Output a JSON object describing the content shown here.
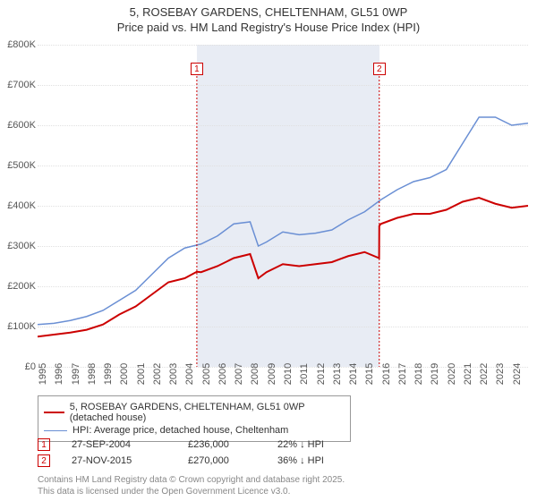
{
  "title_line1": "5, ROSEBAY GARDENS, CHELTENHAM, GL51 0WP",
  "title_line2": "Price paid vs. HM Land Registry's House Price Index (HPI)",
  "chart": {
    "type": "line",
    "background_color": "#ffffff",
    "shaded_band_color": "#e8ecf4",
    "grid_color": "#e0e0e0",
    "x_years": [
      1995,
      1996,
      1997,
      1998,
      1999,
      2000,
      2001,
      2002,
      2003,
      2004,
      2005,
      2006,
      2007,
      2008,
      2009,
      2010,
      2011,
      2012,
      2013,
      2014,
      2015,
      2016,
      2017,
      2018,
      2019,
      2020,
      2021,
      2022,
      2023,
      2024
    ],
    "x_min": 1995,
    "x_max": 2025,
    "ylim": [
      0,
      800000
    ],
    "ytick_step": 100000,
    "y_tick_labels": [
      "£0",
      "£100K",
      "£200K",
      "£300K",
      "£400K",
      "£500K",
      "£600K",
      "£700K",
      "£800K"
    ],
    "shaded_band": {
      "x_start": 2004.74,
      "x_end": 2015.9
    },
    "series": [
      {
        "name": "price_paid",
        "label": "5, ROSEBAY GARDENS, CHELTENHAM, GL51 0WP (detached house)",
        "color": "#cc0000",
        "line_width": 2,
        "points": [
          [
            1995,
            75000
          ],
          [
            1996,
            80000
          ],
          [
            1997,
            85000
          ],
          [
            1998,
            92000
          ],
          [
            1999,
            105000
          ],
          [
            2000,
            130000
          ],
          [
            2001,
            150000
          ],
          [
            2002,
            180000
          ],
          [
            2003,
            210000
          ],
          [
            2004,
            220000
          ],
          [
            2004.74,
            236000
          ],
          [
            2005,
            235000
          ],
          [
            2006,
            250000
          ],
          [
            2007,
            270000
          ],
          [
            2008,
            280000
          ],
          [
            2008.5,
            220000
          ],
          [
            2009,
            235000
          ],
          [
            2010,
            255000
          ],
          [
            2011,
            250000
          ],
          [
            2012,
            255000
          ],
          [
            2013,
            260000
          ],
          [
            2014,
            275000
          ],
          [
            2015,
            285000
          ],
          [
            2015.89,
            270000
          ],
          [
            2015.9,
            350000
          ],
          [
            2016,
            355000
          ],
          [
            2017,
            370000
          ],
          [
            2018,
            380000
          ],
          [
            2019,
            380000
          ],
          [
            2020,
            390000
          ],
          [
            2021,
            410000
          ],
          [
            2022,
            420000
          ],
          [
            2023,
            405000
          ],
          [
            2024,
            395000
          ],
          [
            2025,
            400000
          ]
        ]
      },
      {
        "name": "hpi",
        "label": "HPI: Average price, detached house, Cheltenham",
        "color": "#6a8fd4",
        "line_width": 1.5,
        "points": [
          [
            1995,
            105000
          ],
          [
            1996,
            108000
          ],
          [
            1997,
            115000
          ],
          [
            1998,
            125000
          ],
          [
            1999,
            140000
          ],
          [
            2000,
            165000
          ],
          [
            2001,
            190000
          ],
          [
            2002,
            230000
          ],
          [
            2003,
            270000
          ],
          [
            2004,
            295000
          ],
          [
            2005,
            305000
          ],
          [
            2006,
            325000
          ],
          [
            2007,
            355000
          ],
          [
            2008,
            360000
          ],
          [
            2008.5,
            300000
          ],
          [
            2009,
            310000
          ],
          [
            2010,
            335000
          ],
          [
            2011,
            328000
          ],
          [
            2012,
            332000
          ],
          [
            2013,
            340000
          ],
          [
            2014,
            365000
          ],
          [
            2015,
            385000
          ],
          [
            2016,
            415000
          ],
          [
            2017,
            440000
          ],
          [
            2018,
            460000
          ],
          [
            2019,
            470000
          ],
          [
            2020,
            490000
          ],
          [
            2021,
            555000
          ],
          [
            2022,
            620000
          ],
          [
            2023,
            620000
          ],
          [
            2024,
            600000
          ],
          [
            2025,
            605000
          ]
        ]
      }
    ],
    "markers": [
      {
        "id": "1",
        "x": 2004.74,
        "y_box": 740000,
        "border_color": "#cc0000"
      },
      {
        "id": "2",
        "x": 2015.9,
        "y_box": 740000,
        "border_color": "#cc0000"
      }
    ],
    "axis_font_size": 11,
    "title_font_size": 13
  },
  "legend": {
    "items": [
      {
        "color": "#cc0000",
        "width": 2,
        "label": "5, ROSEBAY GARDENS, CHELTENHAM, GL51 0WP (detached house)"
      },
      {
        "color": "#6a8fd4",
        "width": 1.5,
        "label": "HPI: Average price, detached house, Cheltenham"
      }
    ]
  },
  "transactions": [
    {
      "marker": "1",
      "date": "27-SEP-2004",
      "price": "£236,000",
      "delta": "22% ↓ HPI"
    },
    {
      "marker": "2",
      "date": "27-NOV-2015",
      "price": "£270,000",
      "delta": "36% ↓ HPI"
    }
  ],
  "footer_line1": "Contains HM Land Registry data © Crown copyright and database right 2025.",
  "footer_line2": "This data is licensed under the Open Government Licence v3.0."
}
